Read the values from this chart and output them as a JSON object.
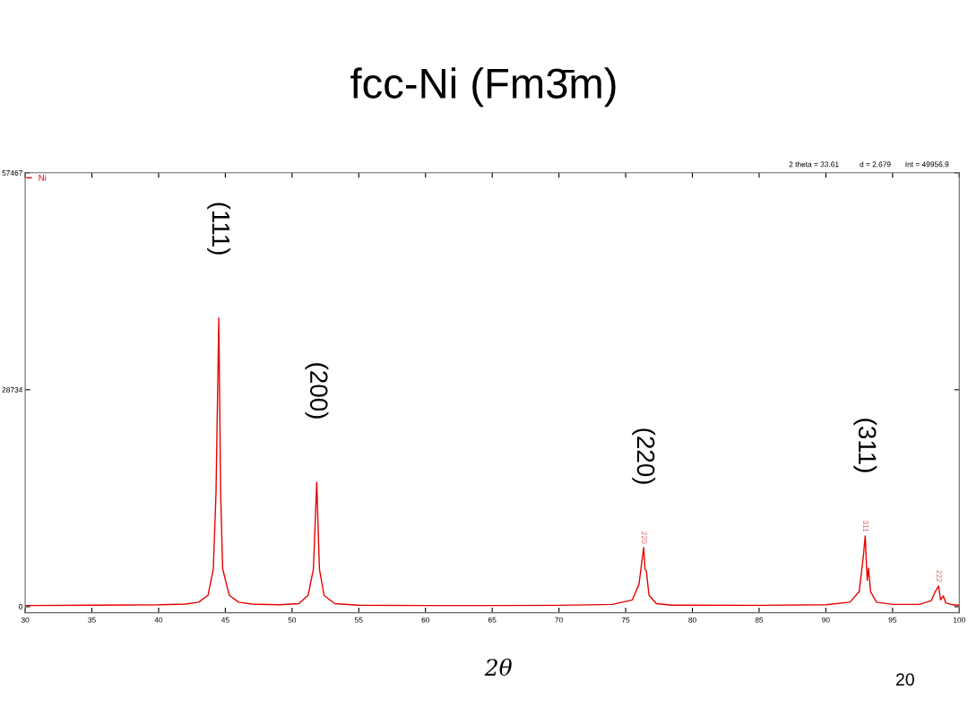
{
  "chart_data": {
    "type": "line",
    "title": "fcc-Ni (Fm3̄m)",
    "xlabel": "2θ",
    "x": [
      30,
      35,
      40,
      42,
      43,
      43.7,
      44.1,
      44.3,
      44.51,
      44.65,
      44.8,
      45.3,
      46,
      47,
      49,
      50.5,
      51.2,
      51.6,
      51.85,
      52.05,
      52.4,
      53.2,
      55,
      60,
      65,
      70,
      74,
      75.5,
      76.0,
      76.35,
      76.45,
      76.55,
      76.75,
      77.3,
      78.5,
      85,
      90,
      91.8,
      92.5,
      92.8,
      92.95,
      93.1,
      93.2,
      93.35,
      93.8,
      95,
      97,
      97.9,
      98.2,
      98.45,
      98.6,
      98.8,
      99,
      99.5,
      100
    ],
    "series": [
      {
        "name": "Ni",
        "color": "#e60000",
        "values": [
          150,
          200,
          250,
          350,
          600,
          1500,
          5000,
          15000,
          38220,
          15000,
          5000,
          1500,
          600,
          350,
          250,
          400,
          1500,
          5000,
          16500,
          5000,
          1500,
          400,
          200,
          150,
          150,
          180,
          300,
          900,
          3000,
          7830,
          5000,
          4750,
          1500,
          400,
          200,
          180,
          250,
          600,
          2000,
          6500,
          9380,
          3500,
          5100,
          2000,
          600,
          300,
          300,
          800,
          2000,
          2730,
          900,
          1420,
          500,
          250,
          200
        ]
      }
    ],
    "xlim": [
      30,
      100
    ],
    "xticks": [
      30,
      35,
      40,
      45,
      50,
      55,
      60,
      65,
      70,
      75,
      80,
      85,
      90,
      95,
      100
    ],
    "ylim": [
      -800,
      57467
    ],
    "yticks": [
      0,
      28734,
      57467
    ],
    "grid": false,
    "legend": "top left",
    "marker": "none",
    "line_style": "solid",
    "annotations": [
      {
        "text": "(111)",
        "x": 44.51,
        "y": 38220
      },
      {
        "text": "(200)",
        "x": 51.85,
        "y": 16500
      },
      {
        "text": "(220)",
        "x": 76.35,
        "y": 7830
      },
      {
        "text": "(311)",
        "x": 92.95,
        "y": 9380
      },
      {
        "text": "220",
        "x": 76.35,
        "y": 7830
      },
      {
        "text": "311",
        "x": 92.95,
        "y": 9380
      },
      {
        "text": "222",
        "x": 98.45,
        "y": 2730
      },
      "2 theta = 33.61",
      "d = 2.679",
      "Int = 49956.9",
      "20"
    ]
  }
}
